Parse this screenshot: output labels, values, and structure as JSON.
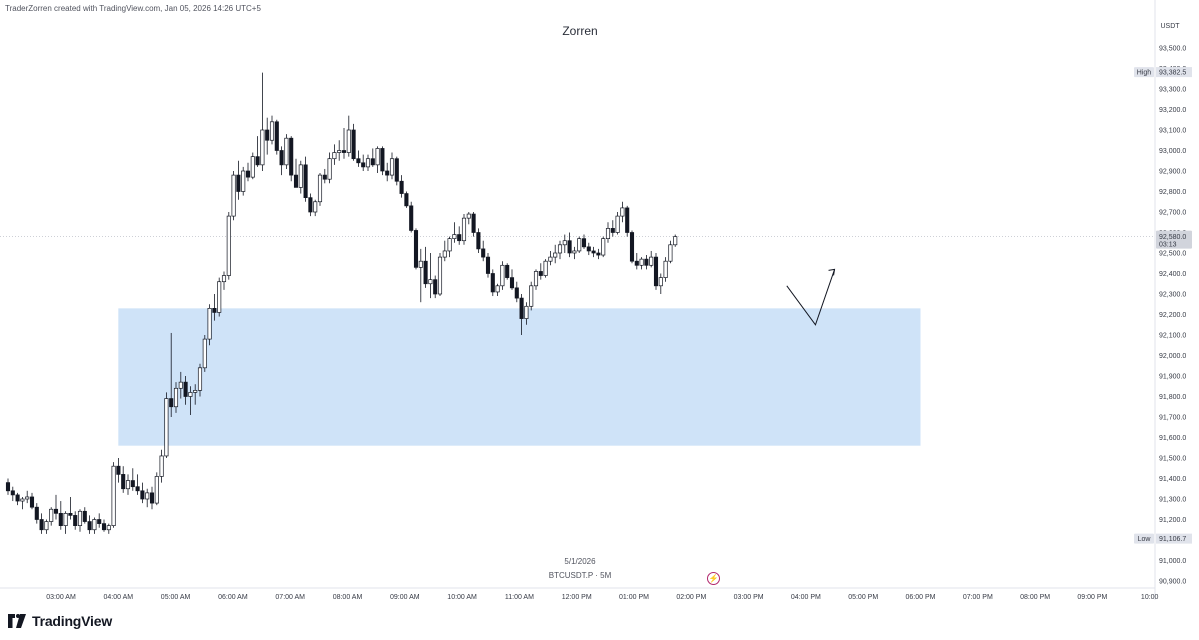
{
  "header": {
    "attribution": "TraderZorren created with TradingView.com, Jan 05, 2026 14:26 UTC+5",
    "title": "Zorren"
  },
  "footer": {
    "date": "5/1/2026",
    "symbol_interval": "BTCUSDT.P · 5M",
    "brand": "TradingView",
    "icon_lightning": "lightning-icon"
  },
  "colors": {
    "up": "#131722",
    "down": "#131722",
    "zone": "#cfe3f8",
    "hl_badge": "#e0e3eb",
    "price_badge": "#d1d4dc"
  },
  "chart_data": {
    "type": "candlestick",
    "symbol": "BTCUSDT.P",
    "interval": "5M",
    "quote_currency": "USDT",
    "y_axis": {
      "ylim": [
        90900,
        93600
      ],
      "ticks": [
        "90,900.0",
        "91,000.0",
        "91,100.0",
        "91,200.0",
        "91,300.0",
        "91,400.0",
        "91,500.0",
        "91,600.0",
        "91,700.0",
        "91,800.0",
        "91,900.0",
        "92,000.0",
        "92,100.0",
        "92,200.0",
        "92,300.0",
        "92,400.0",
        "92,500.0",
        "92,600.0",
        "92,700.0",
        "92,800.0",
        "92,900.0",
        "93,000.0",
        "93,100.0",
        "93,200.0",
        "93,300.0",
        "93,400.0",
        "93,500.0"
      ]
    },
    "x_axis": {
      "ticks": [
        "03:00 AM",
        "04:00 AM",
        "05:00 AM",
        "06:00 AM",
        "07:00 AM",
        "08:00 AM",
        "09:00 AM",
        "10:00 AM",
        "11:00 AM",
        "12:00 PM",
        "01:00 PM",
        "02:00 PM",
        "03:00 PM",
        "04:00 PM",
        "05:00 PM",
        "06:00 PM",
        "07:00 PM",
        "08:00 PM",
        "09:00 PM",
        "10:00"
      ]
    },
    "high": {
      "label": "High",
      "value": "93,382.5",
      "price": 93382.5
    },
    "low": {
      "label": "Low",
      "value": "91,106.7",
      "price": 91106.7
    },
    "last_price": {
      "value": "92,580.0",
      "countdown": "03:13",
      "price": 92580
    },
    "demand_zone": {
      "from_time": "04:00 AM",
      "to_time": "06:00 PM",
      "top": 92230,
      "bottom": 91560
    },
    "projection": {
      "points": [
        [
          "03:40 PM",
          92340
        ],
        [
          "04:10 PM",
          92150
        ],
        [
          "04:30 PM",
          92420
        ]
      ]
    },
    "candles": [
      [
        91380,
        91400,
        91320,
        91340
      ],
      [
        91340,
        91360,
        91290,
        91320
      ],
      [
        91320,
        91330,
        91270,
        91290
      ],
      [
        91290,
        91310,
        91250,
        91300
      ],
      [
        91300,
        91340,
        91280,
        91310
      ],
      [
        91310,
        91330,
        91250,
        91260
      ],
      [
        91260,
        91280,
        91180,
        91200
      ],
      [
        91200,
        91230,
        91130,
        91150
      ],
      [
        91150,
        91200,
        91130,
        91190
      ],
      [
        91190,
        91260,
        91170,
        91250
      ],
      [
        91250,
        91320,
        91200,
        91230
      ],
      [
        91230,
        91290,
        91150,
        91170
      ],
      [
        91170,
        91240,
        91130,
        91230
      ],
      [
        91230,
        91310,
        91200,
        91220
      ],
      [
        91220,
        91240,
        91150,
        91170
      ],
      [
        91170,
        91250,
        91140,
        91240
      ],
      [
        91240,
        91260,
        91180,
        91190
      ],
      [
        91190,
        91220,
        91130,
        91150
      ],
      [
        91150,
        91210,
        91130,
        91200
      ],
      [
        91200,
        91230,
        91160,
        91180
      ],
      [
        91180,
        91200,
        91140,
        91150
      ],
      [
        91150,
        91180,
        91130,
        91170
      ],
      [
        91170,
        91480,
        91160,
        91460
      ],
      [
        91460,
        91500,
        91380,
        91420
      ],
      [
        91420,
        91460,
        91330,
        91350
      ],
      [
        91350,
        91420,
        91320,
        91390
      ],
      [
        91390,
        91450,
        91340,
        91360
      ],
      [
        91360,
        91420,
        91320,
        91340
      ],
      [
        91340,
        91380,
        91280,
        91300
      ],
      [
        91300,
        91350,
        91260,
        91330
      ],
      [
        91330,
        91360,
        91250,
        91280
      ],
      [
        91280,
        91430,
        91270,
        91410
      ],
      [
        91410,
        91540,
        91380,
        91510
      ],
      [
        91510,
        91820,
        91500,
        91790
      ],
      [
        91790,
        92110,
        91700,
        91750
      ],
      [
        91750,
        91870,
        91720,
        91840
      ],
      [
        91840,
        91920,
        91790,
        91870
      ],
      [
        91870,
        91900,
        91760,
        91800
      ],
      [
        91800,
        91850,
        91710,
        91820
      ],
      [
        91820,
        91860,
        91760,
        91830
      ],
      [
        91830,
        91960,
        91800,
        91940
      ],
      [
        91940,
        92100,
        91920,
        92080
      ],
      [
        92080,
        92250,
        92050,
        92230
      ],
      [
        92230,
        92300,
        92170,
        92210
      ],
      [
        92210,
        92380,
        92190,
        92360
      ],
      [
        92360,
        92410,
        92320,
        92390
      ],
      [
        92390,
        92700,
        92370,
        92680
      ],
      [
        92680,
        92900,
        92660,
        92880
      ],
      [
        92880,
        92950,
        92760,
        92800
      ],
      [
        92800,
        92920,
        92780,
        92900
      ],
      [
        92900,
        92940,
        92850,
        92870
      ],
      [
        92870,
        92990,
        92860,
        92970
      ],
      [
        92970,
        93070,
        92920,
        92930
      ],
      [
        92930,
        93380,
        92900,
        93100
      ],
      [
        93100,
        93160,
        92980,
        93050
      ],
      [
        93050,
        93170,
        93030,
        93140
      ],
      [
        93140,
        93150,
        92980,
        93000
      ],
      [
        93000,
        93020,
        92880,
        92930
      ],
      [
        92930,
        93080,
        92910,
        93060
      ],
      [
        93060,
        93070,
        92850,
        92880
      ],
      [
        92880,
        92960,
        92820,
        92820
      ],
      [
        92820,
        92950,
        92790,
        92930
      ],
      [
        92930,
        92970,
        92750,
        92770
      ],
      [
        92770,
        92790,
        92680,
        92700
      ],
      [
        92700,
        92760,
        92680,
        92750
      ],
      [
        92750,
        92890,
        92730,
        92880
      ],
      [
        92880,
        92910,
        92840,
        92860
      ],
      [
        92860,
        92990,
        92840,
        92960
      ],
      [
        92960,
        93030,
        92930,
        92990
      ],
      [
        92990,
        93050,
        92950,
        93000
      ],
      [
        93000,
        93110,
        92960,
        92990
      ],
      [
        92990,
        93170,
        92970,
        93100
      ],
      [
        93100,
        93130,
        92950,
        92960
      ],
      [
        92960,
        93000,
        92920,
        92940
      ],
      [
        92940,
        92980,
        92900,
        92920
      ],
      [
        92920,
        92980,
        92900,
        92960
      ],
      [
        92960,
        93010,
        92920,
        92930
      ],
      [
        92930,
        93020,
        92890,
        93010
      ],
      [
        93010,
        93020,
        92880,
        92900
      ],
      [
        92900,
        92940,
        92850,
        92880
      ],
      [
        92880,
        92990,
        92860,
        92960
      ],
      [
        92960,
        92970,
        92830,
        92850
      ],
      [
        92850,
        92880,
        92770,
        92790
      ],
      [
        92790,
        92800,
        92720,
        92730
      ],
      [
        92730,
        92750,
        92600,
        92610
      ],
      [
        92610,
        92620,
        92420,
        92430
      ],
      [
        92430,
        92520,
        92260,
        92460
      ],
      [
        92460,
        92530,
        92330,
        92350
      ],
      [
        92350,
        92500,
        92280,
        92370
      ],
      [
        92370,
        92390,
        92280,
        92300
      ],
      [
        92300,
        92500,
        92290,
        92480
      ],
      [
        92480,
        92560,
        92460,
        92510
      ],
      [
        92510,
        92580,
        92480,
        92570
      ],
      [
        92570,
        92650,
        92550,
        92590
      ],
      [
        92590,
        92630,
        92540,
        92560
      ],
      [
        92560,
        92690,
        92540,
        92670
      ],
      [
        92670,
        92700,
        92640,
        92690
      ],
      [
        92690,
        92700,
        92580,
        92600
      ],
      [
        92600,
        92620,
        92500,
        92520
      ],
      [
        92520,
        92560,
        92460,
        92480
      ],
      [
        92480,
        92500,
        92380,
        92400
      ],
      [
        92400,
        92420,
        92290,
        92310
      ],
      [
        92310,
        92350,
        92290,
        92340
      ],
      [
        92340,
        92460,
        92320,
        92440
      ],
      [
        92440,
        92450,
        92370,
        92380
      ],
      [
        92380,
        92420,
        92320,
        92330
      ],
      [
        92330,
        92360,
        92260,
        92280
      ],
      [
        92280,
        92300,
        92100,
        92180
      ],
      [
        92180,
        92260,
        92150,
        92240
      ],
      [
        92240,
        92360,
        92220,
        92340
      ],
      [
        92340,
        92420,
        92320,
        92410
      ],
      [
        92410,
        92450,
        92370,
        92390
      ],
      [
        92390,
        92470,
        92380,
        92460
      ],
      [
        92460,
        92510,
        92440,
        92480
      ],
      [
        92480,
        92540,
        92450,
        92500
      ],
      [
        92500,
        92560,
        92470,
        92540
      ],
      [
        92540,
        92590,
        92500,
        92560
      ],
      [
        92560,
        92600,
        92480,
        92500
      ],
      [
        92500,
        92530,
        92470,
        92510
      ],
      [
        92510,
        92580,
        92500,
        92570
      ],
      [
        92570,
        92590,
        92520,
        92530
      ],
      [
        92530,
        92550,
        92490,
        92510
      ],
      [
        92510,
        92530,
        92480,
        92500
      ],
      [
        92500,
        92520,
        92470,
        92490
      ],
      [
        92490,
        92580,
        92480,
        92570
      ],
      [
        92570,
        92650,
        92550,
        92620
      ],
      [
        92620,
        92660,
        92580,
        92600
      ],
      [
        92600,
        92700,
        92590,
        92680
      ],
      [
        92680,
        92750,
        92650,
        92720
      ],
      [
        92720,
        92730,
        92580,
        92600
      ],
      [
        92600,
        92610,
        92450,
        92460
      ],
      [
        92460,
        92500,
        92420,
        92440
      ],
      [
        92440,
        92480,
        92420,
        92470
      ],
      [
        92470,
        92490,
        92420,
        92440
      ],
      [
        92440,
        92510,
        92430,
        92480
      ],
      [
        92480,
        92500,
        92320,
        92340
      ],
      [
        92340,
        92400,
        92300,
        92380
      ],
      [
        92380,
        92480,
        92360,
        92460
      ],
      [
        92460,
        92560,
        92450,
        92540
      ],
      [
        92540,
        92590,
        92530,
        92580
      ]
    ]
  }
}
